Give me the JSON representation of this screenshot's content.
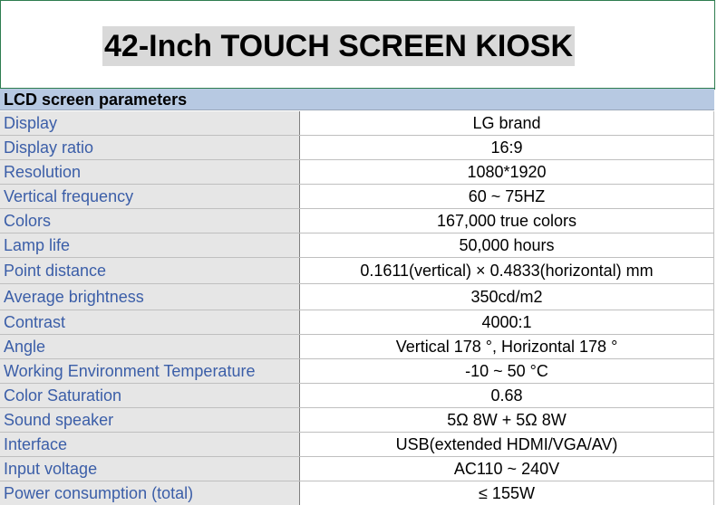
{
  "title": "42-Inch TOUCH SCREEN KIOSK",
  "section": "LCD screen parameters",
  "rows": [
    {
      "label": "Display",
      "value": "LG brand"
    },
    {
      "label": "Display ratio",
      "value": "16:9"
    },
    {
      "label": "Resolution",
      "value": "1080*1920"
    },
    {
      "label": "Vertical frequency",
      "value": "60 ~ 75HZ"
    },
    {
      "label": "Colors",
      "value": "167,000 true colors"
    },
    {
      "label": "Lamp life",
      "value": "50,000 hours"
    },
    {
      "label": "Point distance",
      "value": "0.1611(vertical) × 0.4833(horizontal) mm"
    },
    {
      "label": "Average brightness",
      "value": "350cd/m2"
    },
    {
      "label": "Contrast",
      "value": "4000:1"
    },
    {
      "label": "Angle",
      "value": "Vertical 178 °, Horizontal 178 °"
    },
    {
      "label": "Working Environment Temperature",
      "value": "-10 ~ 50 °C"
    },
    {
      "label": "Color Saturation",
      "value": "0.68"
    },
    {
      "label": "Sound speaker",
      "value": "5Ω 8W + 5Ω 8W"
    },
    {
      "label": "Interface",
      "value": "USB(extended HDMI/VGA/AV)"
    },
    {
      "label": "Input voltage",
      "value": "AC110 ~ 240V"
    },
    {
      "label": "Power consumption (total)",
      "value": "≤ 155W"
    }
  ]
}
